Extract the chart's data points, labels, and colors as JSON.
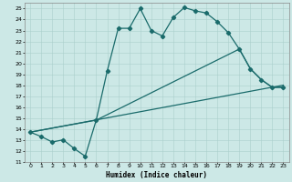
{
  "xlabel": "Humidex (Indice chaleur)",
  "bg_color": "#cce8e6",
  "line_color": "#1a6b6b",
  "grid_color": "#aacfcc",
  "xlim_min": -0.5,
  "xlim_max": 23.5,
  "ylim_min": 11,
  "ylim_max": 25.5,
  "xticks": [
    0,
    1,
    2,
    3,
    4,
    5,
    6,
    7,
    8,
    9,
    10,
    11,
    12,
    13,
    14,
    15,
    16,
    17,
    18,
    19,
    20,
    21,
    22,
    23
  ],
  "yticks": [
    11,
    12,
    13,
    14,
    15,
    16,
    17,
    18,
    19,
    20,
    21,
    22,
    23,
    24,
    25
  ],
  "line1_x": [
    0,
    1,
    2,
    3,
    4,
    5,
    6,
    7,
    8,
    9,
    10,
    11,
    12,
    13,
    14,
    15,
    16,
    17,
    18,
    19,
    20,
    21,
    22,
    23
  ],
  "line1_y": [
    13.7,
    13.3,
    12.8,
    13.0,
    12.2,
    11.5,
    14.8,
    19.3,
    23.2,
    23.2,
    25.0,
    23.0,
    22.5,
    24.2,
    25.1,
    24.8,
    24.6,
    23.8,
    22.8,
    21.3,
    19.5,
    18.5,
    17.8,
    17.8
  ],
  "line2_x": [
    0,
    6,
    19,
    20,
    21,
    22,
    23
  ],
  "line2_y": [
    13.7,
    14.8,
    21.3,
    19.5,
    18.5,
    17.8,
    17.8
  ],
  "line3_x": [
    0,
    23
  ],
  "line3_y": [
    13.7,
    18.0
  ],
  "markersize": 2.2,
  "linewidth": 0.9,
  "tick_fontsize": 4.5,
  "xlabel_fontsize": 5.5
}
